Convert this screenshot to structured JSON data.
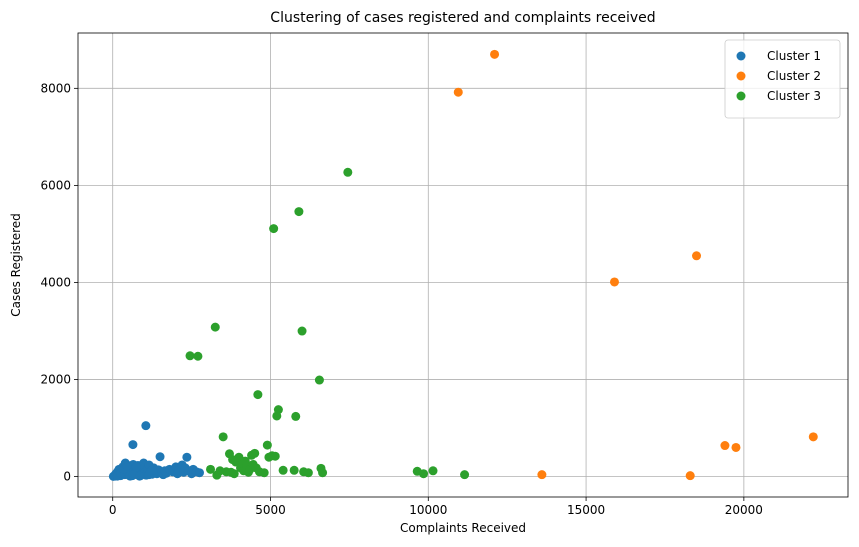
{
  "chart_data": {
    "type": "scatter",
    "title": "Clustering of cases registered and complaints received",
    "xlabel": "Complaints Received",
    "ylabel": "Cases Registered",
    "xlim": [
      -1100,
      23300
    ],
    "ylim": [
      -420,
      9140
    ],
    "xticks": [
      0,
      5000,
      10000,
      15000,
      20000
    ],
    "yticks": [
      0,
      2000,
      4000,
      6000,
      8000
    ],
    "grid": true,
    "legend_position": "top-right",
    "series": [
      {
        "name": "Cluster 1",
        "color": "#1f77b4",
        "points": [
          [
            20,
            5
          ],
          [
            50,
            20
          ],
          [
            80,
            10
          ],
          [
            100,
            60
          ],
          [
            130,
            30
          ],
          [
            150,
            100
          ],
          [
            180,
            40
          ],
          [
            200,
            150
          ],
          [
            220,
            80
          ],
          [
            250,
            20
          ],
          [
            280,
            120
          ],
          [
            300,
            60
          ],
          [
            320,
            200
          ],
          [
            350,
            90
          ],
          [
            380,
            40
          ],
          [
            400,
            280
          ],
          [
            420,
            130
          ],
          [
            450,
            60
          ],
          [
            480,
            180
          ],
          [
            500,
            100
          ],
          [
            520,
            30
          ],
          [
            550,
            220
          ],
          [
            580,
            150
          ],
          [
            600,
            80
          ],
          [
            620,
            20
          ],
          [
            640,
            660
          ],
          [
            650,
            250
          ],
          [
            680,
            120
          ],
          [
            700,
            60
          ],
          [
            720,
            180
          ],
          [
            750,
            100
          ],
          [
            780,
            40
          ],
          [
            800,
            230
          ],
          [
            820,
            150
          ],
          [
            850,
            80
          ],
          [
            880,
            20
          ],
          [
            900,
            200
          ],
          [
            920,
            120
          ],
          [
            950,
            60
          ],
          [
            980,
            280
          ],
          [
            1000,
            180
          ],
          [
            1020,
            90
          ],
          [
            1050,
            1050
          ],
          [
            1060,
            30
          ],
          [
            1100,
            150
          ],
          [
            1150,
            240
          ],
          [
            1200,
            100
          ],
          [
            1250,
            50
          ],
          [
            1300,
            180
          ],
          [
            1350,
            120
          ],
          [
            1400,
            60
          ],
          [
            1450,
            140
          ],
          [
            1500,
            410
          ],
          [
            1550,
            90
          ],
          [
            1600,
            40
          ],
          [
            1650,
            120
          ],
          [
            1700,
            70
          ],
          [
            1800,
            150
          ],
          [
            1900,
            100
          ],
          [
            2000,
            200
          ],
          [
            2050,
            60
          ],
          [
            2100,
            140
          ],
          [
            2200,
            240
          ],
          [
            2250,
            90
          ],
          [
            2300,
            180
          ],
          [
            2350,
            400
          ],
          [
            2400,
            120
          ],
          [
            2500,
            60
          ],
          [
            2550,
            150
          ],
          [
            2650,
            100
          ],
          [
            2750,
            80
          ],
          [
            150,
            10
          ],
          [
            250,
            70
          ],
          [
            350,
            150
          ],
          [
            450,
            220
          ],
          [
            550,
            10
          ],
          [
            650,
            40
          ],
          [
            750,
            200
          ],
          [
            850,
            10
          ],
          [
            1150,
            40
          ],
          [
            1250,
            130
          ]
        ]
      },
      {
        "name": "Cluster 2",
        "color": "#ff7f0e",
        "points": [
          [
            10950,
            7920
          ],
          [
            12100,
            8700
          ],
          [
            13600,
            40
          ],
          [
            15900,
            4010
          ],
          [
            18300,
            20
          ],
          [
            18500,
            4550
          ],
          [
            19400,
            640
          ],
          [
            19750,
            600
          ],
          [
            22200,
            820
          ]
        ]
      },
      {
        "name": "Cluster 3",
        "color": "#2ca02c",
        "points": [
          [
            2450,
            2490
          ],
          [
            2700,
            2480
          ],
          [
            3100,
            150
          ],
          [
            3250,
            3080
          ],
          [
            3300,
            30
          ],
          [
            3400,
            120
          ],
          [
            3500,
            820
          ],
          [
            3600,
            100
          ],
          [
            3700,
            470
          ],
          [
            3750,
            90
          ],
          [
            3800,
            350
          ],
          [
            3850,
            60
          ],
          [
            3900,
            300
          ],
          [
            4000,
            400
          ],
          [
            4050,
            180
          ],
          [
            4100,
            250
          ],
          [
            4150,
            120
          ],
          [
            4200,
            320
          ],
          [
            4250,
            200
          ],
          [
            4300,
            90
          ],
          [
            4350,
            150
          ],
          [
            4400,
            440
          ],
          [
            4450,
            250
          ],
          [
            4500,
            480
          ],
          [
            4550,
            180
          ],
          [
            4600,
            1690
          ],
          [
            4650,
            100
          ],
          [
            4800,
            80
          ],
          [
            4900,
            650
          ],
          [
            4950,
            400
          ],
          [
            5050,
            430
          ],
          [
            5100,
            5110
          ],
          [
            5150,
            420
          ],
          [
            5200,
            1250
          ],
          [
            5250,
            1380
          ],
          [
            5400,
            130
          ],
          [
            5750,
            130
          ],
          [
            5800,
            1240
          ],
          [
            5900,
            5460
          ],
          [
            6000,
            3000
          ],
          [
            6050,
            100
          ],
          [
            6200,
            80
          ],
          [
            6550,
            1990
          ],
          [
            6600,
            170
          ],
          [
            6650,
            80
          ],
          [
            7450,
            6270
          ],
          [
            9650,
            110
          ],
          [
            9850,
            60
          ],
          [
            10150,
            120
          ],
          [
            11150,
            40
          ]
        ]
      }
    ]
  }
}
